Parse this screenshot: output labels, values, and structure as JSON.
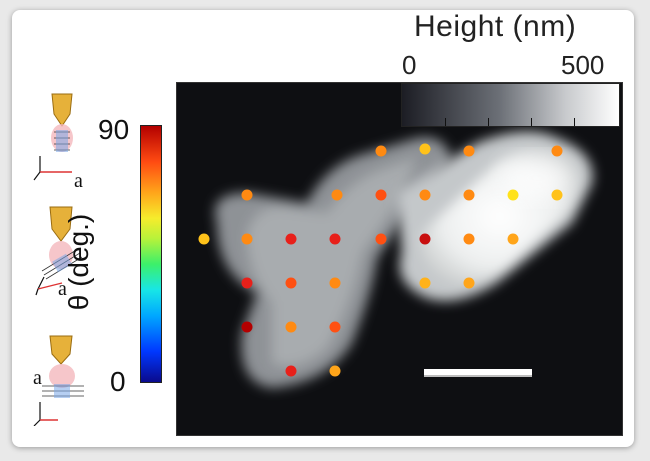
{
  "height_scale": {
    "title": "Height (nm)",
    "min_label": "0",
    "max_label": "500",
    "gradient_colors": [
      "#1c1d24",
      "#6c7077",
      "#c7c9cc",
      "#ffffff"
    ]
  },
  "theta_colorbar": {
    "label": "θ (deg.)",
    "max_label": "90",
    "min_label": "0",
    "colors": [
      "#0a0a8c",
      "#0038ff",
      "#00a8ff",
      "#18e6e6",
      "#3cf06a",
      "#b7f23a",
      "#f6ec2c",
      "#ffa51a",
      "#ff4b12",
      "#b30000"
    ]
  },
  "schematics": [
    {
      "axis_label": "a"
    },
    {
      "axis_label": "a"
    },
    {
      "axis_label": "a"
    }
  ],
  "afm_image": {
    "description_icon": "afm-height-map",
    "scale_bar_color": "#ffffff"
  }
}
